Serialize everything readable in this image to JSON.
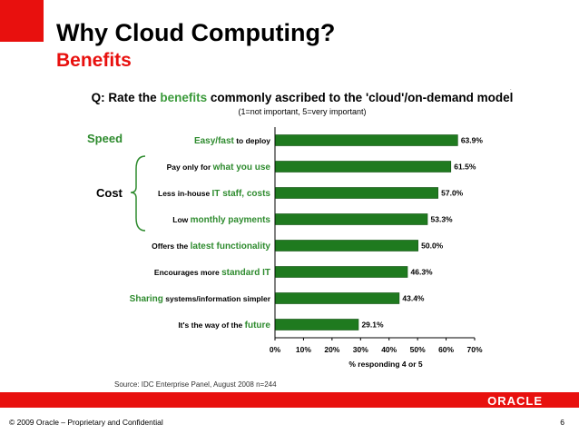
{
  "slide": {
    "title": "Why Cloud Computing?",
    "subtitle": "Benefits",
    "question_prefix": "Q: Rate the ",
    "question_highlight": "benefits",
    "question_suffix": " commonly ascribed to the 'cloud'/on-demand model",
    "scale_note": "(1=not important, 5=very important)",
    "group_speed": "Speed",
    "group_cost": "Cost",
    "source": "Source: IDC Enterprise Panel, August 2008  n=244",
    "logo": "ORACLE",
    "footer_left": "© 2009 Oracle – Proprietary and Confidential",
    "page_number": "6"
  },
  "colors": {
    "accent_red": "#e8100e",
    "bar_green": "#1f7a1f",
    "label_green": "#2e8b2e"
  },
  "chart_data": {
    "type": "bar",
    "orientation": "horizontal",
    "categories": [
      [
        {
          "t": "Easy/fast",
          "g": true
        },
        {
          "t": " to deploy",
          "g": false
        }
      ],
      [
        {
          "t": "Pay only for ",
          "g": false
        },
        {
          "t": "what you use",
          "g": true
        }
      ],
      [
        {
          "t": "Less in-house ",
          "g": false
        },
        {
          "t": "IT staff, costs",
          "g": true
        }
      ],
      [
        {
          "t": "Low ",
          "g": false
        },
        {
          "t": "monthly payments",
          "g": true
        }
      ],
      [
        {
          "t": "Offers the ",
          "g": false
        },
        {
          "t": "latest functionality",
          "g": true
        }
      ],
      [
        {
          "t": "Encourages more ",
          "g": false
        },
        {
          "t": "standard IT",
          "g": true
        }
      ],
      [
        {
          "t": "Sharing",
          "g": true
        },
        {
          "t": " systems/information simpler",
          "g": false
        }
      ],
      [
        {
          "t": "It's the way of the ",
          "g": false
        },
        {
          "t": "future",
          "g": true
        }
      ]
    ],
    "values": [
      63.9,
      61.5,
      57.0,
      53.3,
      50.0,
      46.3,
      43.4,
      29.1
    ],
    "value_labels": [
      "63.9%",
      "61.5%",
      "57.0%",
      "53.3%",
      "50.0%",
      "46.3%",
      "43.4%",
      "29.1%"
    ],
    "xticks": [
      "0%",
      "10%",
      "20%",
      "30%",
      "40%",
      "50%",
      "60%",
      "70%"
    ],
    "xlim": [
      0,
      70
    ],
    "xlabel": "% responding 4 or 5",
    "grid": false
  }
}
